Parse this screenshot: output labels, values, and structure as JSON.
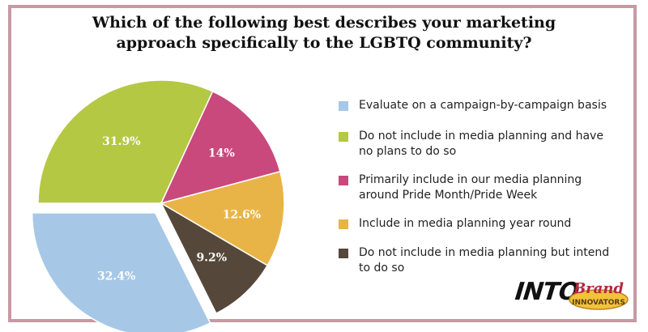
{
  "title": {
    "line1": "Which of the following best describes your marketing",
    "line2": "approach specifically to the LGBTQ community?"
  },
  "chart_data": {
    "type": "pie",
    "slices": [
      {
        "label": "Evaluate on a campaign-by-campaign basis",
        "value": 32.4,
        "display": "32.4%",
        "color": "#a6c8e6",
        "exploded": true
      },
      {
        "label": "Do not include in media planning and have no plans to do so",
        "value": 31.9,
        "display": "31.9%",
        "color": "#b5c843",
        "exploded": false
      },
      {
        "label": "Primarily include in our media planning around Pride Month/Pride Week",
        "value": 14,
        "display": "14%",
        "color": "#c9497c",
        "exploded": false
      },
      {
        "label": "Include in media planning year round",
        "value": 12.6,
        "display": "12.6%",
        "color": "#e9b447",
        "exploded": false
      },
      {
        "label": "Do not include in media planning but intend to do so",
        "value": 9.2,
        "display": "9.2%",
        "color": "#55483a",
        "exploded": false
      }
    ],
    "legend_position": "right"
  },
  "legend": [
    {
      "text": "Evaluate on a campaign-by-campaign basis",
      "color": "#a6c8e6"
    },
    {
      "text": "Do not include in media planning and have no plans to do so",
      "color": "#b5c843"
    },
    {
      "text": "Primarily include in our media planning around Pride Month/Pride Week",
      "color": "#c9497c"
    },
    {
      "text": "Include in media planning year round",
      "color": "#e9b447"
    },
    {
      "text": "Do not include in media planning but intend to do so",
      "color": "#55483a"
    }
  ],
  "logos": {
    "into": "INTO",
    "brand_word": "Brand",
    "innovators_word": "INNOVATORS"
  },
  "frame_color": "#c79aa3"
}
